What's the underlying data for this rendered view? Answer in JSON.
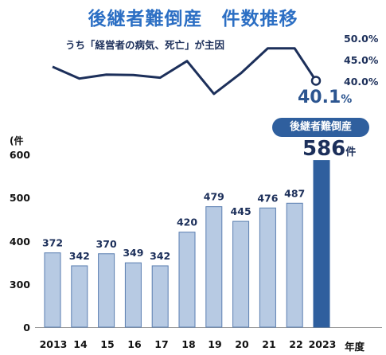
{
  "title": "後継者難倒産　件数推移",
  "line_caption": "うち「経営者の病気、死亡」が主因",
  "percent_ticks": [
    "50.0%",
    "45.0%",
    "40.0%"
  ],
  "last_value": {
    "number": "40.1",
    "unit": "%"
  },
  "unit_label": "(件",
  "badge": "後継者難倒産",
  "highlight": {
    "number": "586",
    "unit": "件"
  },
  "x_suffix": "年度",
  "colors": {
    "bar": "#b7cae3",
    "bar_border": "#5a7eb0",
    "highlight_bar": "#2f5f9e",
    "line": "#1c2f5a",
    "title": "#2c6fc4"
  },
  "chart_data": [
    {
      "type": "bar",
      "categories": [
        "2013",
        "14",
        "15",
        "16",
        "17",
        "18",
        "19",
        "20",
        "21",
        "22",
        "2023"
      ],
      "values": [
        372,
        342,
        370,
        349,
        342,
        420,
        479,
        445,
        476,
        487,
        586
      ],
      "data_labels": [
        "372",
        "342",
        "370",
        "349",
        "342",
        "420",
        "479",
        "445",
        "476",
        "487",
        ""
      ],
      "yticks": [
        "600",
        "500",
        "400",
        "300",
        "0"
      ],
      "y_tick_values": [
        600,
        500,
        400,
        300,
        0
      ],
      "ylim": [
        200,
        600
      ],
      "axis_break": true,
      "ylabel": "(件",
      "highlighted_category": "2023"
    },
    {
      "type": "line",
      "categories": [
        "2013",
        "14",
        "15",
        "16",
        "17",
        "18",
        "19",
        "20",
        "21",
        "22",
        "2023"
      ],
      "values": [
        43.3,
        40.6,
        41.5,
        41.4,
        40.8,
        44.6,
        37.1,
        41.8,
        47.5,
        47.5,
        40.1
      ],
      "yticks": [
        "50.0%",
        "45.0%",
        "40.0%"
      ],
      "ylim": [
        40,
        50
      ]
    }
  ]
}
